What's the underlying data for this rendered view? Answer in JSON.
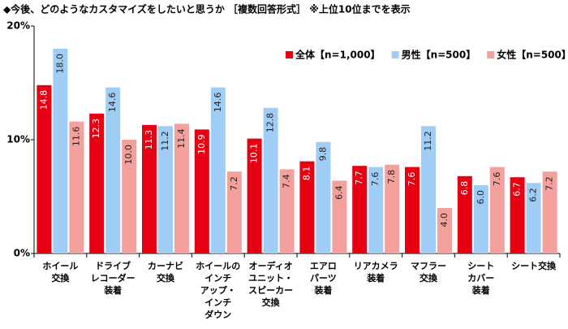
{
  "chart_data": {
    "type": "bar",
    "title": "◆今後、どのようなカスタマイズをしたいと思うか ［複数回答形式］ ※上位10位までを表示",
    "categories": [
      "ホイール\n交換",
      "ドライブ\nレコーダー\n装着",
      "カーナビ\n交換",
      "ホイールの\nインチ\nアップ・\nインチ\nダウン",
      "オーディオ\nユニット・\nスピーカー\n交換",
      "エアロ\nパーツ\n装着",
      "リアカメラ\n装着",
      "マフラー\n交換",
      "シート\nカバー\n装着",
      "シート交換"
    ],
    "series": [
      {
        "name": "全体【n=1,000】",
        "color": "#e60012",
        "values": [
          14.8,
          12.3,
          11.3,
          10.9,
          10.1,
          8.1,
          7.7,
          7.6,
          6.8,
          6.7
        ],
        "value_labels": [
          "14.8",
          "12.3",
          "11.3",
          "10.9",
          "10.1",
          "8.1",
          "7.7",
          "7.6",
          "6.8",
          "6.7"
        ]
      },
      {
        "name": "男性【n=500】",
        "color": "#9fcdf5",
        "values": [
          18.0,
          14.6,
          11.2,
          14.6,
          12.8,
          9.8,
          7.6,
          11.2,
          6.0,
          6.2
        ],
        "value_labels": [
          "18.0",
          "14.6",
          "11.2",
          "14.6",
          "12.8",
          "9.8",
          "7.6",
          "11.2",
          "6.0",
          "6.2"
        ]
      },
      {
        "name": "女性【n=500】",
        "color": "#f4a09c",
        "values": [
          11.6,
          10.0,
          11.4,
          7.2,
          7.4,
          6.4,
          7.8,
          4.0,
          7.6,
          7.2
        ],
        "value_labels": [
          "11.6",
          "10.0",
          "11.4",
          "7.2",
          "7.4",
          "6.4",
          "7.8",
          "4.0",
          "7.6",
          "7.2"
        ]
      }
    ],
    "ylim": [
      0,
      20
    ],
    "yticks": [
      {
        "value": 0,
        "label": "0%"
      },
      {
        "value": 10,
        "label": "10%"
      },
      {
        "value": 20,
        "label": "20%"
      }
    ],
    "grid": false,
    "legend": "top-right"
  }
}
